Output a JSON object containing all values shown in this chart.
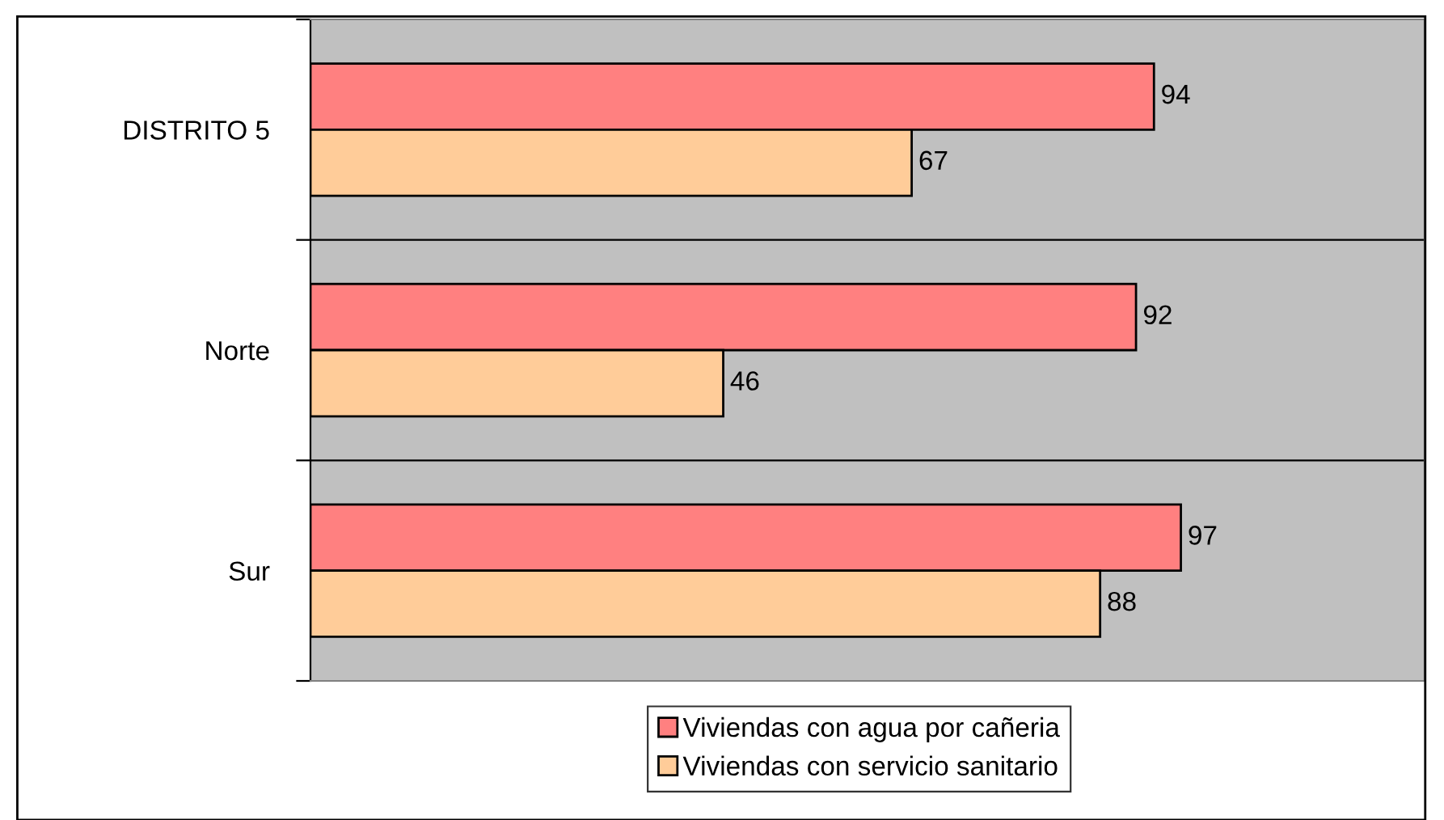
{
  "chart_data": {
    "type": "bar",
    "orientation": "horizontal",
    "categories": [
      "DISTRITO 5",
      "Norte",
      "Sur"
    ],
    "series": [
      {
        "name": "Viviendas con agua por cañeria",
        "color": "#ff8080",
        "values": [
          94,
          92,
          97
        ]
      },
      {
        "name": "Viviendas con servicio sanitario",
        "color": "#ffcc99",
        "values": [
          67,
          46,
          88
        ]
      }
    ],
    "data_labels": true,
    "grid": "y",
    "legend": "bottom",
    "tick_labels": "y"
  }
}
